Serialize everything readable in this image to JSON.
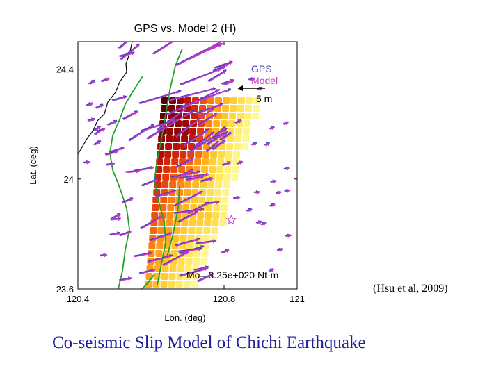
{
  "slide": {
    "title": "Co-seismic Slip Model of Chichi Earthquake",
    "citation": "(Hsu et al, 2009)"
  },
  "chart_data": {
    "type": "map-vector-field",
    "title": "GPS vs. Model 2 (H)",
    "xlabel": "Lon. (deg)",
    "ylabel": "Lat. (deg)",
    "xlim": [
      120.4,
      121.0
    ],
    "ylim": [
      23.6,
      24.5
    ],
    "xticks": [
      120.4,
      120.8,
      121
    ],
    "xtick_labels": [
      "120.4",
      "120.8",
      "121"
    ],
    "yticks": [
      23.6,
      24.0,
      24.4
    ],
    "ytick_labels": [
      "23.6",
      "24",
      "24.4"
    ],
    "legend": {
      "placement": "top-right",
      "entries": [
        {
          "label": "GPS",
          "color": "#4b3fbf"
        },
        {
          "label": "Model",
          "color": "#c43ac7"
        }
      ],
      "scale_label": "5 m",
      "scale_value_m": 5
    },
    "annotation": "Mo= 3.25e+020 Nt-m",
    "epicenter": {
      "lon": 120.82,
      "lat": 23.85
    },
    "colors": {
      "gps_vector": "#4b3fbf",
      "model_vector": "#c43ac7",
      "fault_trace": "#22a02a",
      "coastline": "#000000"
    }
  }
}
